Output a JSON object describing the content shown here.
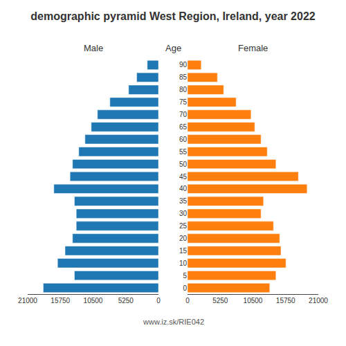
{
  "chart_data": {
    "type": "bar",
    "orientation": "horizontal",
    "title": "demographic pyramid West Region, Ireland, year 2022",
    "ylabel": "Age",
    "categories": [
      0,
      5,
      10,
      15,
      20,
      25,
      30,
      35,
      40,
      45,
      50,
      55,
      60,
      65,
      70,
      75,
      80,
      85,
      90
    ],
    "series": [
      {
        "name": "Male",
        "values": [
          18500,
          13500,
          16200,
          15000,
          13800,
          13200,
          13200,
          13500,
          16800,
          14200,
          13800,
          12800,
          11800,
          10800,
          9800,
          7800,
          4800,
          3500,
          1800
        ]
      },
      {
        "name": "Female",
        "values": [
          13200,
          14200,
          15800,
          15000,
          14800,
          13800,
          11800,
          12200,
          19200,
          17800,
          14200,
          12800,
          11800,
          10800,
          10200,
          7800,
          5800,
          4800,
          2200
        ]
      }
    ],
    "xlim": [
      0,
      21000
    ],
    "xticks": [
      0,
      5250,
      10500,
      15750,
      21000
    ],
    "grid": false,
    "annotations": [
      "www.iz.sk/RIE042"
    ]
  }
}
